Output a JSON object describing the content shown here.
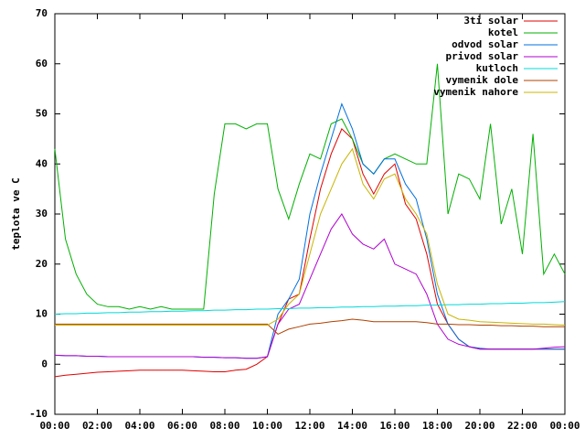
{
  "chart_data": {
    "type": "line",
    "ylabel": "teplota ve C",
    "x": [
      0,
      0.5,
      1,
      1.5,
      2,
      2.5,
      3,
      3.5,
      4,
      4.5,
      5,
      5.5,
      6,
      6.5,
      7,
      7.5,
      8,
      8.5,
      9,
      9.5,
      10,
      10.5,
      11,
      11.5,
      12,
      12.5,
      13,
      13.5,
      14,
      14.5,
      15,
      15.5,
      16,
      16.5,
      17,
      17.5,
      18,
      18.5,
      19,
      19.5,
      20,
      20.5,
      21,
      21.5,
      22,
      22.5,
      23,
      23.5,
      24
    ],
    "xlim": [
      0,
      24
    ],
    "xticks": [
      {
        "value": 0,
        "label": "00:00"
      },
      {
        "value": 2,
        "label": "02:00"
      },
      {
        "value": 4,
        "label": "04:00"
      },
      {
        "value": 6,
        "label": "06:00"
      },
      {
        "value": 8,
        "label": "08:00"
      },
      {
        "value": 10,
        "label": "10:00"
      },
      {
        "value": 12,
        "label": "12:00"
      },
      {
        "value": 14,
        "label": "14:00"
      },
      {
        "value": 16,
        "label": "16:00"
      },
      {
        "value": 18,
        "label": "18:00"
      },
      {
        "value": 20,
        "label": "20:00"
      },
      {
        "value": 22,
        "label": "22:00"
      },
      {
        "value": 24,
        "label": "00:00"
      }
    ],
    "ylim": [
      -10,
      70
    ],
    "yticks": [
      -10,
      0,
      10,
      20,
      30,
      40,
      50,
      60,
      70
    ],
    "legend": "top-right",
    "series": [
      {
        "name": "3ti solar",
        "color": "#e00000",
        "values": [
          -2.5,
          -2.2,
          -2,
          -1.8,
          -1.6,
          -1.5,
          -1.4,
          -1.3,
          -1.2,
          -1.2,
          -1.2,
          -1.2,
          -1.2,
          -1.3,
          -1.4,
          -1.5,
          -1.5,
          -1.2,
          -1,
          0,
          1.5,
          8,
          13,
          14,
          25,
          35,
          42,
          47,
          45,
          38,
          34,
          38,
          40,
          32,
          29,
          22,
          12,
          8,
          5,
          3.5,
          3,
          3,
          3,
          3,
          3,
          3,
          3,
          3,
          3
        ]
      },
      {
        "name": "kotel",
        "color": "#00b000",
        "values": [
          43,
          25,
          18,
          14,
          12,
          11.5,
          11.5,
          11,
          11.5,
          11,
          11.5,
          11,
          11,
          11,
          11,
          34,
          48,
          48,
          47,
          48,
          48,
          35,
          29,
          36,
          42,
          41,
          48,
          49,
          45,
          40,
          38,
          41,
          42,
          41,
          40,
          40,
          60,
          30,
          38,
          37,
          33,
          48,
          28,
          35,
          22,
          46,
          18,
          22,
          18
        ]
      },
      {
        "name": "odvod solar",
        "color": "#0070e0",
        "values": [
          1.8,
          1.7,
          1.7,
          1.6,
          1.6,
          1.5,
          1.5,
          1.5,
          1.5,
          1.5,
          1.5,
          1.5,
          1.5,
          1.5,
          1.4,
          1.4,
          1.3,
          1.3,
          1.2,
          1.2,
          1.5,
          10,
          13,
          17,
          30,
          38,
          45,
          52,
          47,
          40,
          38,
          41,
          41,
          36,
          33,
          25,
          14,
          8,
          5,
          3.5,
          3.2,
          3,
          3,
          3,
          3,
          3,
          3,
          3,
          3
        ]
      },
      {
        "name": "privod solar",
        "color": "#b000d0",
        "values": [
          1.8,
          1.7,
          1.7,
          1.6,
          1.6,
          1.5,
          1.5,
          1.5,
          1.5,
          1.5,
          1.5,
          1.5,
          1.5,
          1.5,
          1.4,
          1.4,
          1.3,
          1.3,
          1.2,
          1.2,
          1.5,
          8,
          11,
          12,
          17,
          22,
          27,
          30,
          26,
          24,
          23,
          25,
          20,
          19,
          18,
          14,
          8,
          5,
          4,
          3.5,
          3,
          3,
          3,
          3,
          3,
          3,
          3.2,
          3.4,
          3.5
        ]
      },
      {
        "name": "kutloch",
        "color": "#00d8d8",
        "values": [
          10.0,
          10.1,
          10.1,
          10.2,
          10.2,
          10.3,
          10.3,
          10.4,
          10.4,
          10.5,
          10.5,
          10.6,
          10.6,
          10.7,
          10.7,
          10.8,
          10.8,
          10.9,
          10.9,
          11.0,
          11.0,
          11.1,
          11.1,
          11.2,
          11.2,
          11.3,
          11.3,
          11.4,
          11.4,
          11.5,
          11.5,
          11.6,
          11.6,
          11.7,
          11.7,
          11.8,
          11.8,
          11.9,
          11.9,
          12.0,
          12.0,
          12.1,
          12.1,
          12.2,
          12.2,
          12.3,
          12.3,
          12.4,
          12.5
        ]
      },
      {
        "name": "vymenik dole",
        "color": "#b04000",
        "values": [
          8,
          8,
          8,
          8,
          8,
          8,
          8,
          8,
          8,
          8,
          8,
          8,
          8,
          8,
          8,
          8,
          8,
          8,
          8,
          8,
          8,
          6,
          7,
          7.5,
          8,
          8.2,
          8.5,
          8.7,
          9,
          8.8,
          8.5,
          8.5,
          8.5,
          8.5,
          8.5,
          8.3,
          8,
          8,
          7.9,
          7.9,
          7.8,
          7.8,
          7.7,
          7.7,
          7.6,
          7.6,
          7.5,
          7.5,
          7.5
        ]
      },
      {
        "name": "vymenik nahore",
        "color": "#c8b400",
        "values": [
          7.8,
          7.8,
          7.8,
          7.8,
          7.8,
          7.8,
          7.8,
          7.8,
          7.8,
          7.8,
          7.8,
          7.8,
          7.8,
          7.8,
          7.8,
          7.8,
          7.8,
          7.8,
          7.8,
          7.8,
          7.8,
          9,
          12,
          14,
          22,
          30,
          35,
          40,
          43,
          36,
          33,
          37,
          38,
          33,
          30,
          26,
          16,
          10,
          9,
          8.8,
          8.5,
          8.4,
          8.3,
          8.2,
          8.1,
          8,
          8,
          7.9,
          7.8
        ]
      }
    ]
  }
}
